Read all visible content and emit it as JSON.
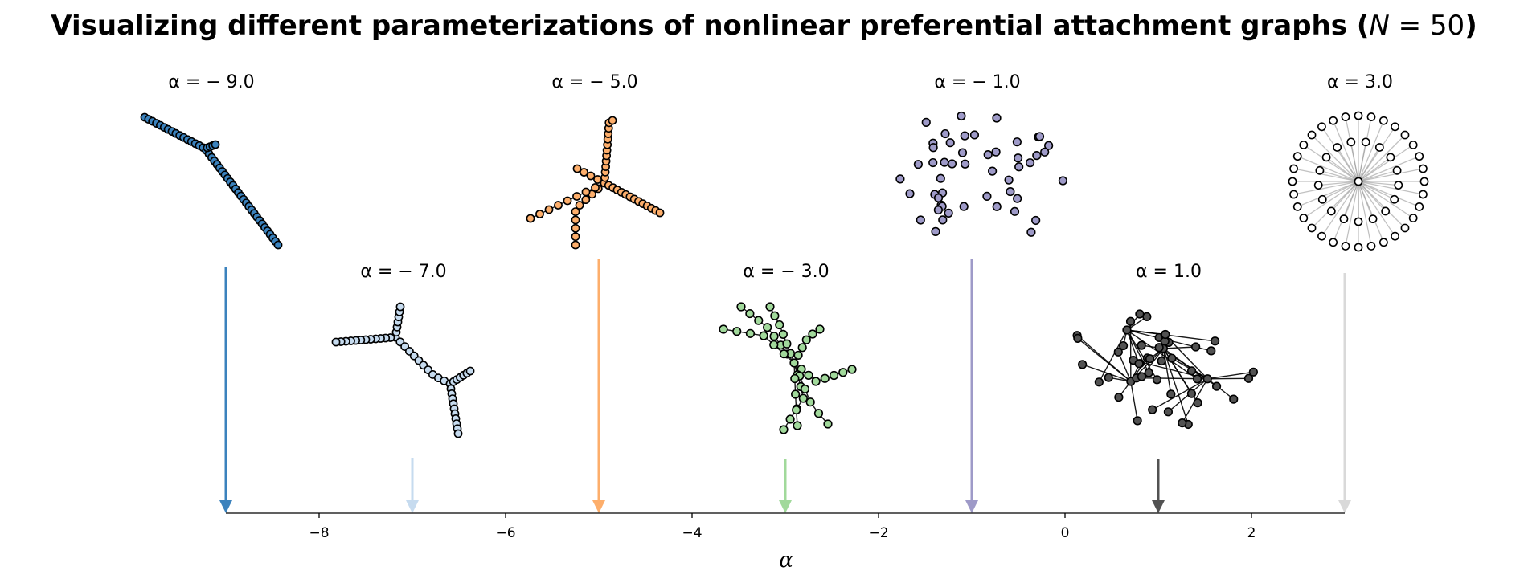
{
  "title": {
    "prefix": "Visualizing different parameterizations of nonlinear preferential attachment graphs (",
    "var": "N",
    "eq": " = 50",
    "suffix": ")"
  },
  "axis": {
    "label": "α",
    "ticks": [
      "−8",
      "−6",
      "−4",
      "−2",
      "0",
      "2"
    ],
    "tick_values": [
      -8,
      -6,
      -4,
      -2,
      0,
      2
    ],
    "range": [
      -9,
      3
    ]
  },
  "graphs": [
    {
      "alpha": -9.0,
      "label": "α = − 9.0",
      "color": "#3b82bd",
      "row": "top"
    },
    {
      "alpha": -7.0,
      "label": "α = − 7.0",
      "color": "#c6dbef",
      "row": "bottom"
    },
    {
      "alpha": -5.0,
      "label": "α = − 5.0",
      "color": "#fdae6b",
      "row": "top"
    },
    {
      "alpha": -3.0,
      "label": "α = − 3.0",
      "color": "#a1d99b",
      "row": "bottom"
    },
    {
      "alpha": -1.0,
      "label": "α = − 1.0",
      "color": "#9e9ac8",
      "row": "top"
    },
    {
      "alpha": 1.0,
      "label": "α = 1.0",
      "color": "#525252",
      "row": "bottom"
    },
    {
      "alpha": 3.0,
      "label": "α = 3.0",
      "color": "#ffffff",
      "arrow_color": "#d9d9d9",
      "row": "top"
    }
  ],
  "node_count": 50
}
